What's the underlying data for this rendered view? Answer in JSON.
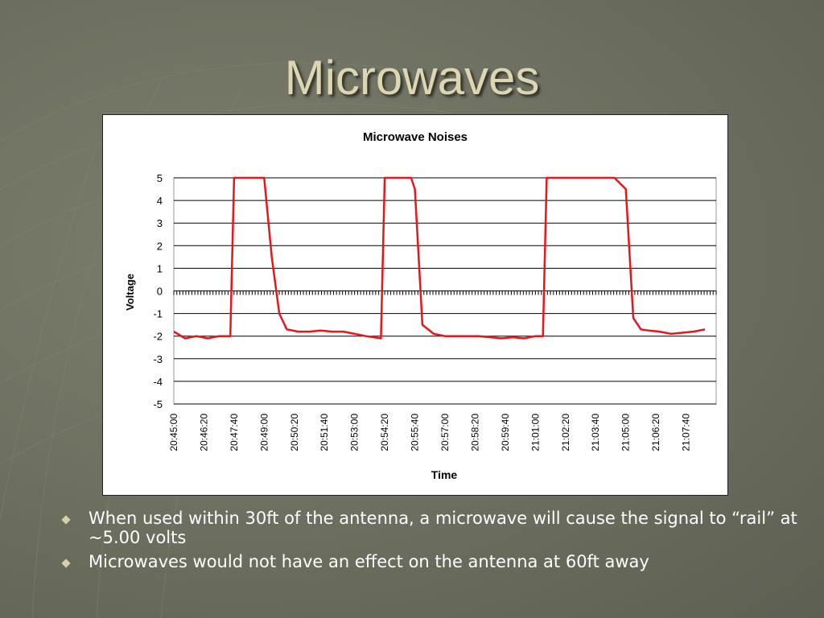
{
  "slide": {
    "title": "Microwaves",
    "bullets": [
      {
        "text": "When used within 30ft of the antenna, a microwave will cause the signal to “rail” at ~5.00 volts"
      },
      {
        "text": "Microwaves would not have an effect on the antenna at 60ft away"
      }
    ]
  },
  "colors": {
    "series": "#e8161b",
    "title": "#dcd6b2",
    "background": "#6f7162"
  },
  "chart_data": {
    "type": "line",
    "title": "Microwave Noises",
    "xlabel": "Time",
    "ylabel": "Voltage",
    "ylim": [
      -5,
      5
    ],
    "yticks": [
      "5",
      "4",
      "3",
      "2",
      "1",
      "0",
      "-1",
      "-2",
      "-3",
      "-4",
      "-5"
    ],
    "xticks": [
      "20:45:00",
      "20:46:20",
      "20:47:40",
      "20:49:00",
      "20:50:20",
      "20:51:40",
      "20:53:00",
      "20:54:20",
      "20:55:40",
      "20:57:00",
      "20:58:20",
      "20:59:40",
      "21:01:00",
      "21:02:20",
      "21:03:40",
      "21:05:00",
      "21:06:20",
      "21:07:40"
    ],
    "grid": true,
    "legend": "none",
    "x": [
      "20:45:00",
      "20:45:30",
      "20:46:00",
      "20:46:30",
      "20:47:00",
      "20:47:30",
      "20:47:40",
      "20:48:00",
      "20:48:30",
      "20:49:00",
      "20:49:20",
      "20:49:40",
      "20:50:00",
      "20:50:30",
      "20:51:00",
      "20:51:30",
      "20:52:00",
      "20:52:30",
      "20:53:00",
      "20:53:30",
      "20:54:10",
      "20:54:20",
      "20:55:00",
      "20:55:30",
      "20:55:40",
      "20:56:00",
      "20:56:30",
      "20:57:00",
      "20:57:30",
      "20:58:00",
      "20:58:30",
      "20:59:00",
      "20:59:30",
      "21:00:00",
      "21:00:30",
      "21:01:00",
      "21:01:20",
      "21:01:30",
      "21:02:20",
      "21:03:40",
      "21:04:30",
      "21:05:00",
      "21:05:20",
      "21:05:40",
      "21:06:00",
      "21:06:30",
      "21:07:00",
      "21:07:30",
      "21:08:00",
      "21:08:30"
    ],
    "series": [
      {
        "values": [
          -1.8,
          -2.1,
          -2.0,
          -2.1,
          -2.0,
          -2.0,
          5.0,
          5.0,
          5.0,
          5.0,
          1.5,
          -1.0,
          -1.7,
          -1.8,
          -1.8,
          -1.75,
          -1.8,
          -1.8,
          -1.9,
          -2.0,
          -2.1,
          5.0,
          5.0,
          5.0,
          4.5,
          -1.5,
          -1.9,
          -2.0,
          -2.0,
          -2.0,
          -2.0,
          -2.05,
          -2.1,
          -2.05,
          -2.1,
          -2.0,
          -2.0,
          5.0,
          5.0,
          5.0,
          5.0,
          4.5,
          -1.2,
          -1.7,
          -1.75,
          -1.8,
          -1.9,
          -1.85,
          -1.8,
          -1.7
        ]
      }
    ]
  }
}
